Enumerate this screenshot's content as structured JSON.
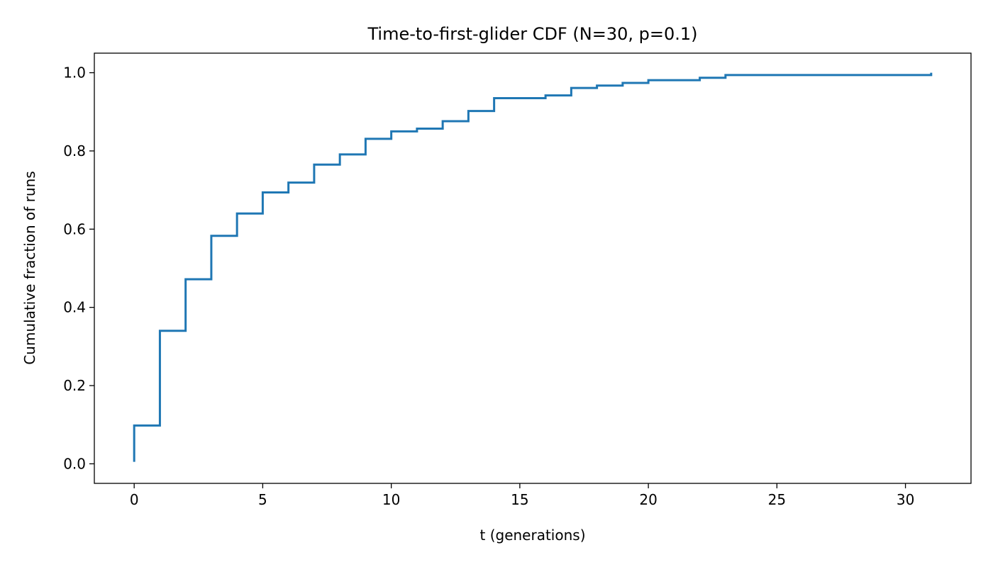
{
  "chart_data": {
    "type": "line",
    "drawstyle": "steps-post",
    "title": "Time-to-first-glider CDF (N=30, p=0.1)",
    "xlabel": "t (generations)",
    "ylabel": "Cumulative fraction of runs",
    "xlim": [
      -1.55,
      32.55
    ],
    "ylim": [
      -0.05,
      1.05
    ],
    "xticks": [
      0,
      5,
      10,
      15,
      20,
      25,
      30
    ],
    "xtick_labels": [
      "0",
      "5",
      "10",
      "15",
      "20",
      "25",
      "30"
    ],
    "yticks": [
      0.0,
      0.2,
      0.4,
      0.6,
      0.8,
      1.0
    ],
    "ytick_labels": [
      "0.0",
      "0.2",
      "0.4",
      "0.6",
      "0.8",
      "1.0"
    ],
    "grid": false,
    "legend": "none",
    "series": [
      {
        "color": "#1f77b4",
        "x": [
          0,
          0,
          1,
          2,
          3,
          4,
          5,
          6,
          7,
          8,
          9,
          10,
          11,
          12,
          13,
          14,
          16,
          17,
          18,
          19,
          20,
          22,
          23,
          31
        ],
        "y": [
          0.005,
          0.098,
          0.34,
          0.472,
          0.583,
          0.64,
          0.694,
          0.719,
          0.765,
          0.791,
          0.831,
          0.85,
          0.857,
          0.876,
          0.902,
          0.935,
          0.942,
          0.961,
          0.967,
          0.974,
          0.981,
          0.987,
          0.994,
          1.0
        ]
      }
    ]
  }
}
